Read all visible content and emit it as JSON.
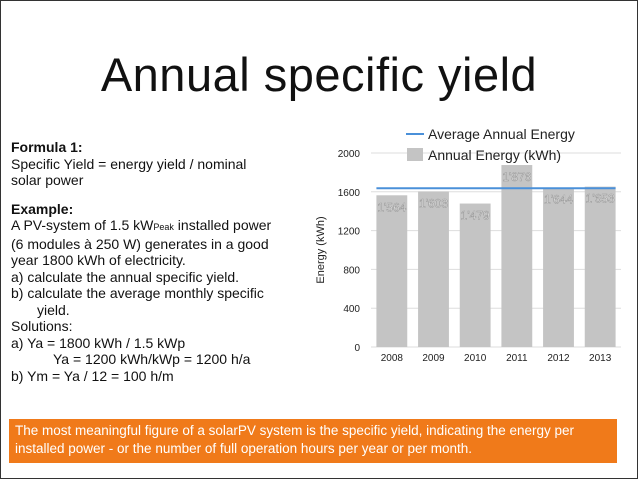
{
  "title": "Annual specific yield",
  "left": {
    "formula_heading": "Formula 1:",
    "formula_line1": "Specific Yield = energy yield / nominal",
    "formula_line2": "solar power",
    "example_heading": "Example:",
    "ex_line1_pre": "A PV-system of 1.5 kW",
    "ex_line1_sub": "Peak",
    "ex_line1_post": " installed power",
    "ex_line2": "(6 modules à 250 W) generates in a good",
    "ex_line3": "year 1800 kWh of electricity.",
    "ex_a": "a)  calculate the annual specific yield.",
    "ex_b1": "b)  calculate the average monthly specific",
    "ex_b2": "yield.",
    "solutions": "Solutions:",
    "sol_a1": "a)  Ya = 1800 kWh / 1.5 kWp",
    "sol_a2": "Ya = 1200 kWh/kWp = 1200 h/a",
    "sol_b": "b)  Ym = Ya / 12 = 100 h/m"
  },
  "note": "The most meaningful figure of a solarPV system is the specific yield, indicating the energy per installed power - or the number of full operation hours per year or per month.",
  "colors": {
    "bar": "#c4c4c4",
    "avg_line": "#4a90d9",
    "note_bg": "#f07a1a"
  },
  "chart_data": {
    "type": "bar",
    "categories": [
      "2008",
      "2009",
      "2010",
      "2011",
      "2012",
      "2013"
    ],
    "series": [
      {
        "name": "Annual Energy (kWh)",
        "values": [
          1564,
          1603,
          1479,
          1876,
          1644,
          1653
        ]
      },
      {
        "name": "Average Annual Energy",
        "type": "line",
        "value": 1637
      }
    ],
    "data_labels": [
      "1'564",
      "1'603",
      "1'479",
      "1'876",
      "1'644",
      "1'653"
    ],
    "title": "",
    "xlabel": "",
    "ylabel": "Energy (kWh)",
    "ylim": [
      0,
      2000
    ],
    "yticks": [
      "0",
      "400",
      "800",
      "1200",
      "1600",
      "2000"
    ],
    "grid": true,
    "legend_position": "top-right"
  }
}
